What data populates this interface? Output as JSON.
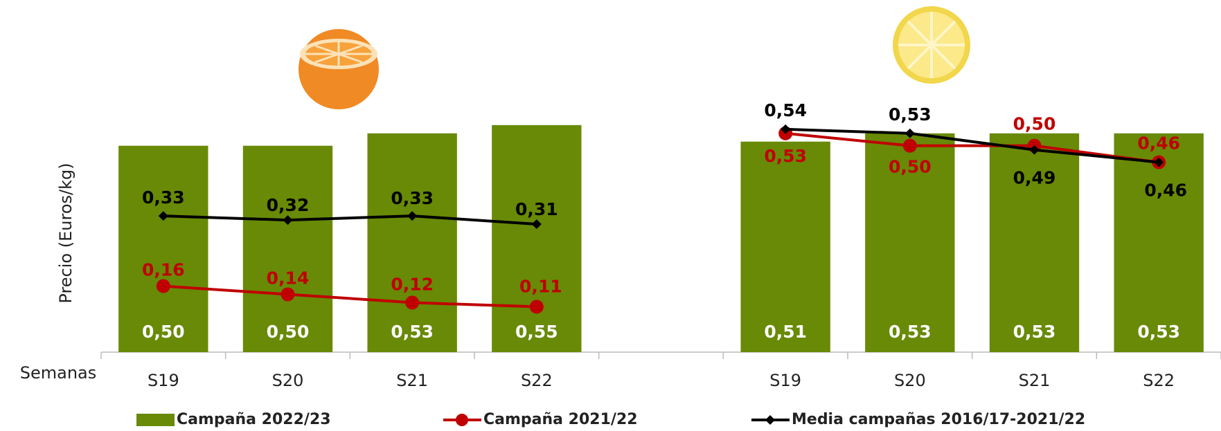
{
  "chart_data": {
    "type": "bar-line",
    "y_label": "Precio (Euros/kg)",
    "x_label": "Semanas",
    "categories": [
      "S19",
      "S20",
      "S21",
      "S22",
      null,
      "S19",
      "S20",
      "S21",
      "S22"
    ],
    "ylim": [
      0,
      0.6
    ],
    "series": [
      {
        "name": "Campaña 2022/23",
        "kind": "bar",
        "color": "#688a06",
        "values": [
          0.5,
          0.5,
          0.53,
          0.55,
          null,
          0.51,
          0.53,
          0.53,
          0.53
        ],
        "value_labels": [
          "0,50",
          "0,50",
          "0,53",
          "0,55",
          null,
          "0,51",
          "0,53",
          "0,53",
          "0,53"
        ]
      },
      {
        "name": "Campaña 2021/22",
        "kind": "line",
        "color": "#c00000",
        "values": [
          0.16,
          0.14,
          0.12,
          0.11,
          null,
          0.53,
          0.5,
          0.5,
          0.46
        ],
        "value_labels": [
          "0,16",
          "0,14",
          "0,12",
          "0,11",
          null,
          "0,53",
          "0,50",
          "0,50",
          "0,46"
        ]
      },
      {
        "name": "Media campañas 2016/17-2021/22",
        "kind": "line",
        "color": "#000000",
        "values": [
          0.33,
          0.32,
          0.33,
          0.31,
          null,
          0.54,
          0.53,
          0.49,
          0.46
        ],
        "value_labels": [
          "0,33",
          "0,32",
          "0,33",
          "0,31",
          null,
          "0,54",
          "0,53",
          "0,49",
          "0,46"
        ]
      }
    ]
  }
}
